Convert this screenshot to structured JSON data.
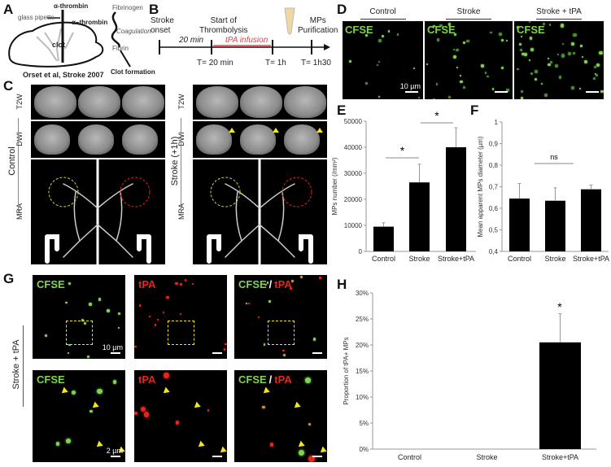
{
  "panels": {
    "A": {
      "label": "A",
      "alpha_thrombin_top": "α-thrombin",
      "glass_pipette": "glass pipette",
      "clot": "clot",
      "alpha_thrombin_side": "α−thrombin",
      "fibrinogen": "Fibrinogen",
      "coagulation": "Coagulation",
      "fibrin": "Fibrin",
      "clot_formation": "Clot formation",
      "citation": "Orset et al, Stroke 2007"
    },
    "B": {
      "label": "B",
      "stroke_onset": [
        "Stroke",
        "onset"
      ],
      "start_thrombolysis": [
        "Start of",
        "Thrombolysis"
      ],
      "twenty_min": "20 min",
      "tpa_infusion": "tPA infusion",
      "mps_purification": [
        "MPs",
        "Purification"
      ],
      "t_labels": [
        "T= 20 min",
        "T= 1h",
        "T= 1h30"
      ]
    },
    "C": {
      "label": "C",
      "rows": [
        "T2W",
        "DWI",
        "MRA"
      ],
      "left_group": "Control",
      "right_group": "Stroke (+1h)"
    },
    "D": {
      "label": "D",
      "columns": [
        "Control",
        "Stroke",
        "Stroke + tPA"
      ],
      "stain": "CFSE",
      "scale": "10 µm"
    },
    "E": {
      "label": "E"
    },
    "F": {
      "label": "F"
    },
    "G": {
      "label": "G",
      "group": "Stroke + tPA",
      "channels": [
        "CFSE",
        "tPA",
        "CFSE",
        "/",
        "tPA"
      ],
      "scale_top": "10 µm",
      "scale_bottom": "2 µm"
    },
    "H": {
      "label": "H"
    }
  },
  "colors": {
    "green": "#7fd34f",
    "red": "#e8231c",
    "yellow": "#f5e51a",
    "bar": "#000000"
  },
  "chart_data": [
    {
      "id": "E",
      "type": "bar",
      "categories": [
        "Control",
        "Stroke",
        "Stroke+tPA"
      ],
      "values": [
        9500,
        26500,
        40000
      ],
      "errors": [
        1500,
        7000,
        7500
      ],
      "ylabel": "MPs number (/mm²)",
      "ylim": [
        0,
        50000
      ],
      "yticks": [
        "0",
        "10000",
        "20000",
        "30000",
        "40000",
        "50000"
      ],
      "annotations": [
        "*",
        "*"
      ],
      "grid": false
    },
    {
      "id": "F",
      "type": "bar",
      "categories": [
        "Control",
        "Stroke",
        "Stroke+tPA"
      ],
      "values": [
        0.645,
        0.635,
        0.688
      ],
      "errors": [
        0.07,
        0.06,
        0.02
      ],
      "ylabel": "Mean apparent MPs diameter (µm)",
      "ylim": [
        0.4,
        1.0
      ],
      "yticks": [
        "0,4",
        "0,5",
        "0,6",
        "0,7",
        "0,8",
        "0,9",
        "1"
      ],
      "annotations": [
        "ns"
      ],
      "grid": false
    },
    {
      "id": "H",
      "type": "bar",
      "categories": [
        "Control",
        "Stroke",
        "Stroke+tPA"
      ],
      "values": [
        0,
        0,
        20.5
      ],
      "errors": [
        0,
        0,
        5.5
      ],
      "ylabel": "Proportion of tPA+ MPs",
      "ylim": [
        0,
        30
      ],
      "yticks": [
        "0%",
        "5%",
        "10%",
        "15%",
        "20%",
        "25%",
        "30%"
      ],
      "annotations": [
        "*"
      ],
      "grid": false
    }
  ]
}
